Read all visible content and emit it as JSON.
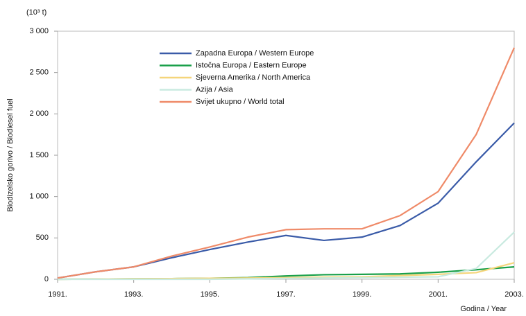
{
  "chart_data": {
    "type": "line",
    "unit_label": "(10³ t)",
    "ylabel": "Biodizelsko gorivo / Biodiesel fuel",
    "xlabel": "Godina / Year",
    "x": [
      1991,
      1992,
      1993,
      1994,
      1995,
      1996,
      1997,
      1998,
      1999,
      2000,
      2001,
      2002,
      2003
    ],
    "xlim": [
      1991,
      2003
    ],
    "xticks": [
      {
        "value": 1991,
        "label": "1991."
      },
      {
        "value": 1993,
        "label": "1993."
      },
      {
        "value": 1995,
        "label": "1995."
      },
      {
        "value": 1997,
        "label": "1997."
      },
      {
        "value": 1999,
        "label": "1999."
      },
      {
        "value": 2001,
        "label": "2001."
      },
      {
        "value": 2003,
        "label": "2003."
      }
    ],
    "ylim": [
      0,
      3000
    ],
    "yticks": [
      0,
      500,
      {
        "value": 1000,
        "label": "1 000"
      },
      {
        "value": 1500,
        "label": "1 500"
      },
      {
        "value": 2000,
        "label": "2 000"
      },
      {
        "value": 2500,
        "label": "2 500"
      },
      {
        "value": 3000,
        "label": "3 000"
      }
    ],
    "legend": "upper left",
    "series": [
      {
        "name": "Zapadna Europa / Western Europe",
        "color": "#3a5ba8",
        "values": [
          15,
          90,
          150,
          260,
          360,
          450,
          530,
          470,
          510,
          650,
          920,
          1420,
          1890
        ]
      },
      {
        "name": "Istočna Europa / Eastern Europe",
        "color": "#1aa04a",
        "values": [
          0,
          2,
          5,
          8,
          12,
          20,
          40,
          55,
          60,
          65,
          85,
          115,
          150
        ]
      },
      {
        "name": "Sjeverna Amerika / North America",
        "color": "#f5d57a",
        "values": [
          0,
          2,
          5,
          8,
          12,
          15,
          20,
          25,
          30,
          45,
          60,
          80,
          200
        ]
      },
      {
        "name": "Azija / Asia",
        "color": "#c9eae0",
        "values": [
          0,
          0,
          0,
          0,
          0,
          5,
          10,
          15,
          20,
          25,
          30,
          130,
          570
        ]
      },
      {
        "name": "Svijet ukupno / World total",
        "color": "#ef8a68",
        "values": [
          15,
          90,
          150,
          280,
          390,
          510,
          600,
          610,
          610,
          770,
          1060,
          1750,
          2800
        ]
      }
    ]
  }
}
